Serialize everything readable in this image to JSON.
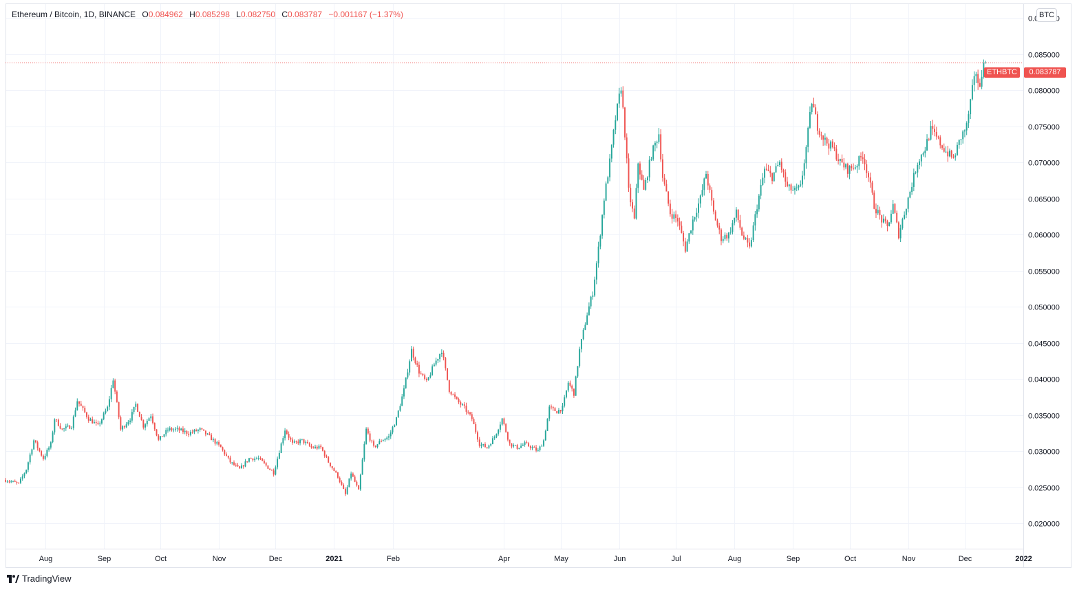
{
  "legend": {
    "symbol": "Ethereum / Bitcoin, 1D, BINANCE",
    "open_label": "O",
    "open": "0.084962",
    "high_label": "H",
    "high": "0.085298",
    "low_label": "L",
    "low": "0.082750",
    "close_label": "C",
    "close": "0.083787",
    "change": "−0.001167 (−1.37%)"
  },
  "unit": "BTC",
  "price_badge": {
    "symbol": "ETHBTC",
    "price": "0.083787"
  },
  "brand": {
    "name": "TradingView",
    "icon": "tradingview-logo-icon"
  },
  "colors": {
    "up": "#26a69a",
    "down": "#ef5350",
    "grid": "#f0f3fa",
    "text": "#131722"
  },
  "chart_data": {
    "type": "candlestick",
    "symbol": "ETHBTC",
    "interval": "1D",
    "exchange": "BINANCE",
    "y_ticks": [
      "0.090000",
      "0.085000",
      "0.080000",
      "0.075000",
      "0.070000",
      "0.065000",
      "0.060000",
      "0.055000",
      "0.050000",
      "0.045000",
      "0.040000",
      "0.035000",
      "0.030000",
      "0.025000",
      "0.020000"
    ],
    "ylim": [
      0.0165,
      0.092
    ],
    "x_ticks": [
      {
        "label": "Aug",
        "date": "2020-08-01"
      },
      {
        "label": "Sep",
        "date": "2020-09-01"
      },
      {
        "label": "Oct",
        "date": "2020-10-01"
      },
      {
        "label": "Nov",
        "date": "2020-11-01"
      },
      {
        "label": "Dec",
        "date": "2020-12-01"
      },
      {
        "label": "2021",
        "date": "2021-01-01"
      },
      {
        "label": "Feb",
        "date": "2021-02-01"
      },
      {
        "label": "Apr",
        "date": "2021-04-01"
      },
      {
        "label": "May",
        "date": "2021-05-01"
      },
      {
        "label": "Jun",
        "date": "2021-06-01"
      },
      {
        "label": "Jul",
        "date": "2021-07-01"
      },
      {
        "label": "Aug",
        "date": "2021-08-01"
      },
      {
        "label": "Sep",
        "date": "2021-09-01"
      },
      {
        "label": "Oct",
        "date": "2021-10-01"
      },
      {
        "label": "Nov",
        "date": "2021-11-01"
      },
      {
        "label": "Dec",
        "date": "2021-12-01"
      },
      {
        "label": "2022",
        "date": "2022-01-01"
      }
    ],
    "xlim": [
      "2020-07-11",
      "2022-01-01"
    ],
    "last_price": 0.083787,
    "close_path": [
      [
        "2020-07-11",
        0.026
      ],
      [
        "2020-07-18",
        0.0255
      ],
      [
        "2020-07-22",
        0.0275
      ],
      [
        "2020-07-26",
        0.0315
      ],
      [
        "2020-07-31",
        0.029
      ],
      [
        "2020-08-04",
        0.031
      ],
      [
        "2020-08-06",
        0.0345
      ],
      [
        "2020-08-10",
        0.033
      ],
      [
        "2020-08-15",
        0.0335
      ],
      [
        "2020-08-18",
        0.037
      ],
      [
        "2020-08-24",
        0.0345
      ],
      [
        "2020-08-29",
        0.0335
      ],
      [
        "2020-09-03",
        0.036
      ],
      [
        "2020-09-06",
        0.04
      ],
      [
        "2020-09-10",
        0.033
      ],
      [
        "2020-09-15",
        0.0345
      ],
      [
        "2020-09-18",
        0.0365
      ],
      [
        "2020-09-22",
        0.0335
      ],
      [
        "2020-09-26",
        0.035
      ],
      [
        "2020-09-30",
        0.0315
      ],
      [
        "2020-10-05",
        0.033
      ],
      [
        "2020-10-10",
        0.033
      ],
      [
        "2020-10-16",
        0.0325
      ],
      [
        "2020-10-22",
        0.033
      ],
      [
        "2020-10-27",
        0.032
      ],
      [
        "2020-11-02",
        0.0305
      ],
      [
        "2020-11-07",
        0.0285
      ],
      [
        "2020-11-12",
        0.0275
      ],
      [
        "2020-11-17",
        0.029
      ],
      [
        "2020-11-22",
        0.029
      ],
      [
        "2020-11-26",
        0.028
      ],
      [
        "2020-11-30",
        0.027
      ],
      [
        "2020-12-04",
        0.031
      ],
      [
        "2020-12-06",
        0.033
      ],
      [
        "2020-12-10",
        0.031
      ],
      [
        "2020-12-15",
        0.0315
      ],
      [
        "2020-12-20",
        0.0305
      ],
      [
        "2020-12-25",
        0.0305
      ],
      [
        "2020-12-29",
        0.0285
      ],
      [
        "2021-01-03",
        0.0265
      ],
      [
        "2021-01-07",
        0.024
      ],
      [
        "2021-01-10",
        0.027
      ],
      [
        "2021-01-14",
        0.0245
      ],
      [
        "2021-01-18",
        0.033
      ],
      [
        "2021-01-22",
        0.0305
      ],
      [
        "2021-01-26",
        0.0315
      ],
      [
        "2021-01-30",
        0.032
      ],
      [
        "2021-02-03",
        0.0345
      ],
      [
        "2021-02-07",
        0.0385
      ],
      [
        "2021-02-11",
        0.044
      ],
      [
        "2021-02-15",
        0.041
      ],
      [
        "2021-02-19",
        0.0395
      ],
      [
        "2021-02-23",
        0.042
      ],
      [
        "2021-02-27",
        0.044
      ],
      [
        "2021-03-03",
        0.0385
      ],
      [
        "2021-03-07",
        0.037
      ],
      [
        "2021-03-11",
        0.036
      ],
      [
        "2021-03-15",
        0.0345
      ],
      [
        "2021-03-19",
        0.031
      ],
      [
        "2021-03-23",
        0.0305
      ],
      [
        "2021-03-27",
        0.032
      ],
      [
        "2021-03-31",
        0.0345
      ],
      [
        "2021-04-04",
        0.031
      ],
      [
        "2021-04-08",
        0.0305
      ],
      [
        "2021-04-12",
        0.031
      ],
      [
        "2021-04-16",
        0.0305
      ],
      [
        "2021-04-19",
        0.03
      ],
      [
        "2021-04-22",
        0.0315
      ],
      [
        "2021-04-25",
        0.036
      ],
      [
        "2021-04-29",
        0.0355
      ],
      [
        "2021-05-02",
        0.036
      ],
      [
        "2021-05-05",
        0.0395
      ],
      [
        "2021-05-08",
        0.038
      ],
      [
        "2021-05-11",
        0.044
      ],
      [
        "2021-05-15",
        0.049
      ],
      [
        "2021-05-18",
        0.052
      ],
      [
        "2021-05-21",
        0.058
      ],
      [
        "2021-05-24",
        0.065
      ],
      [
        "2021-05-27",
        0.07
      ],
      [
        "2021-05-30",
        0.076
      ],
      [
        "2021-06-02",
        0.0805
      ],
      [
        "2021-06-04",
        0.074
      ],
      [
        "2021-06-06",
        0.066
      ],
      [
        "2021-06-09",
        0.062
      ],
      [
        "2021-06-11",
        0.07
      ],
      [
        "2021-06-14",
        0.066
      ],
      [
        "2021-06-18",
        0.071
      ],
      [
        "2021-06-22",
        0.074
      ],
      [
        "2021-06-24",
        0.068
      ],
      [
        "2021-06-28",
        0.063
      ],
      [
        "2021-07-02",
        0.062
      ],
      [
        "2021-07-06",
        0.058
      ],
      [
        "2021-07-10",
        0.062
      ],
      [
        "2021-07-14",
        0.065
      ],
      [
        "2021-07-17",
        0.0685
      ],
      [
        "2021-07-21",
        0.063
      ],
      [
        "2021-07-25",
        0.0595
      ],
      [
        "2021-07-29",
        0.06
      ],
      [
        "2021-08-02",
        0.063
      ],
      [
        "2021-08-05",
        0.06
      ],
      [
        "2021-08-09",
        0.058
      ],
      [
        "2021-08-13",
        0.064
      ],
      [
        "2021-08-17",
        0.069
      ],
      [
        "2021-08-21",
        0.068
      ],
      [
        "2021-08-25",
        0.07
      ],
      [
        "2021-08-29",
        0.0665
      ],
      [
        "2021-09-02",
        0.066
      ],
      [
        "2021-09-05",
        0.0665
      ],
      [
        "2021-09-08",
        0.072
      ],
      [
        "2021-09-11",
        0.0785
      ],
      [
        "2021-09-14",
        0.075
      ],
      [
        "2021-09-18",
        0.073
      ],
      [
        "2021-09-22",
        0.072
      ],
      [
        "2021-09-26",
        0.07
      ],
      [
        "2021-09-30",
        0.069
      ],
      [
        "2021-10-04",
        0.0695
      ],
      [
        "2021-10-08",
        0.071
      ],
      [
        "2021-10-11",
        0.068
      ],
      [
        "2021-10-14",
        0.064
      ],
      [
        "2021-10-18",
        0.062
      ],
      [
        "2021-10-21",
        0.061
      ],
      [
        "2021-10-24",
        0.064
      ],
      [
        "2021-10-27",
        0.06
      ],
      [
        "2021-10-31",
        0.064
      ],
      [
        "2021-11-03",
        0.067
      ],
      [
        "2021-11-06",
        0.07
      ],
      [
        "2021-11-10",
        0.072
      ],
      [
        "2021-11-13",
        0.0745
      ],
      [
        "2021-11-17",
        0.073
      ],
      [
        "2021-11-21",
        0.0715
      ],
      [
        "2021-11-25",
        0.0705
      ],
      [
        "2021-11-29",
        0.0735
      ],
      [
        "2021-12-02",
        0.075
      ],
      [
        "2021-12-05",
        0.08
      ],
      [
        "2021-12-07",
        0.0825
      ],
      [
        "2021-12-09",
        0.08
      ],
      [
        "2021-12-11",
        0.0845
      ],
      [
        "2021-12-12",
        0.083787
      ]
    ]
  }
}
